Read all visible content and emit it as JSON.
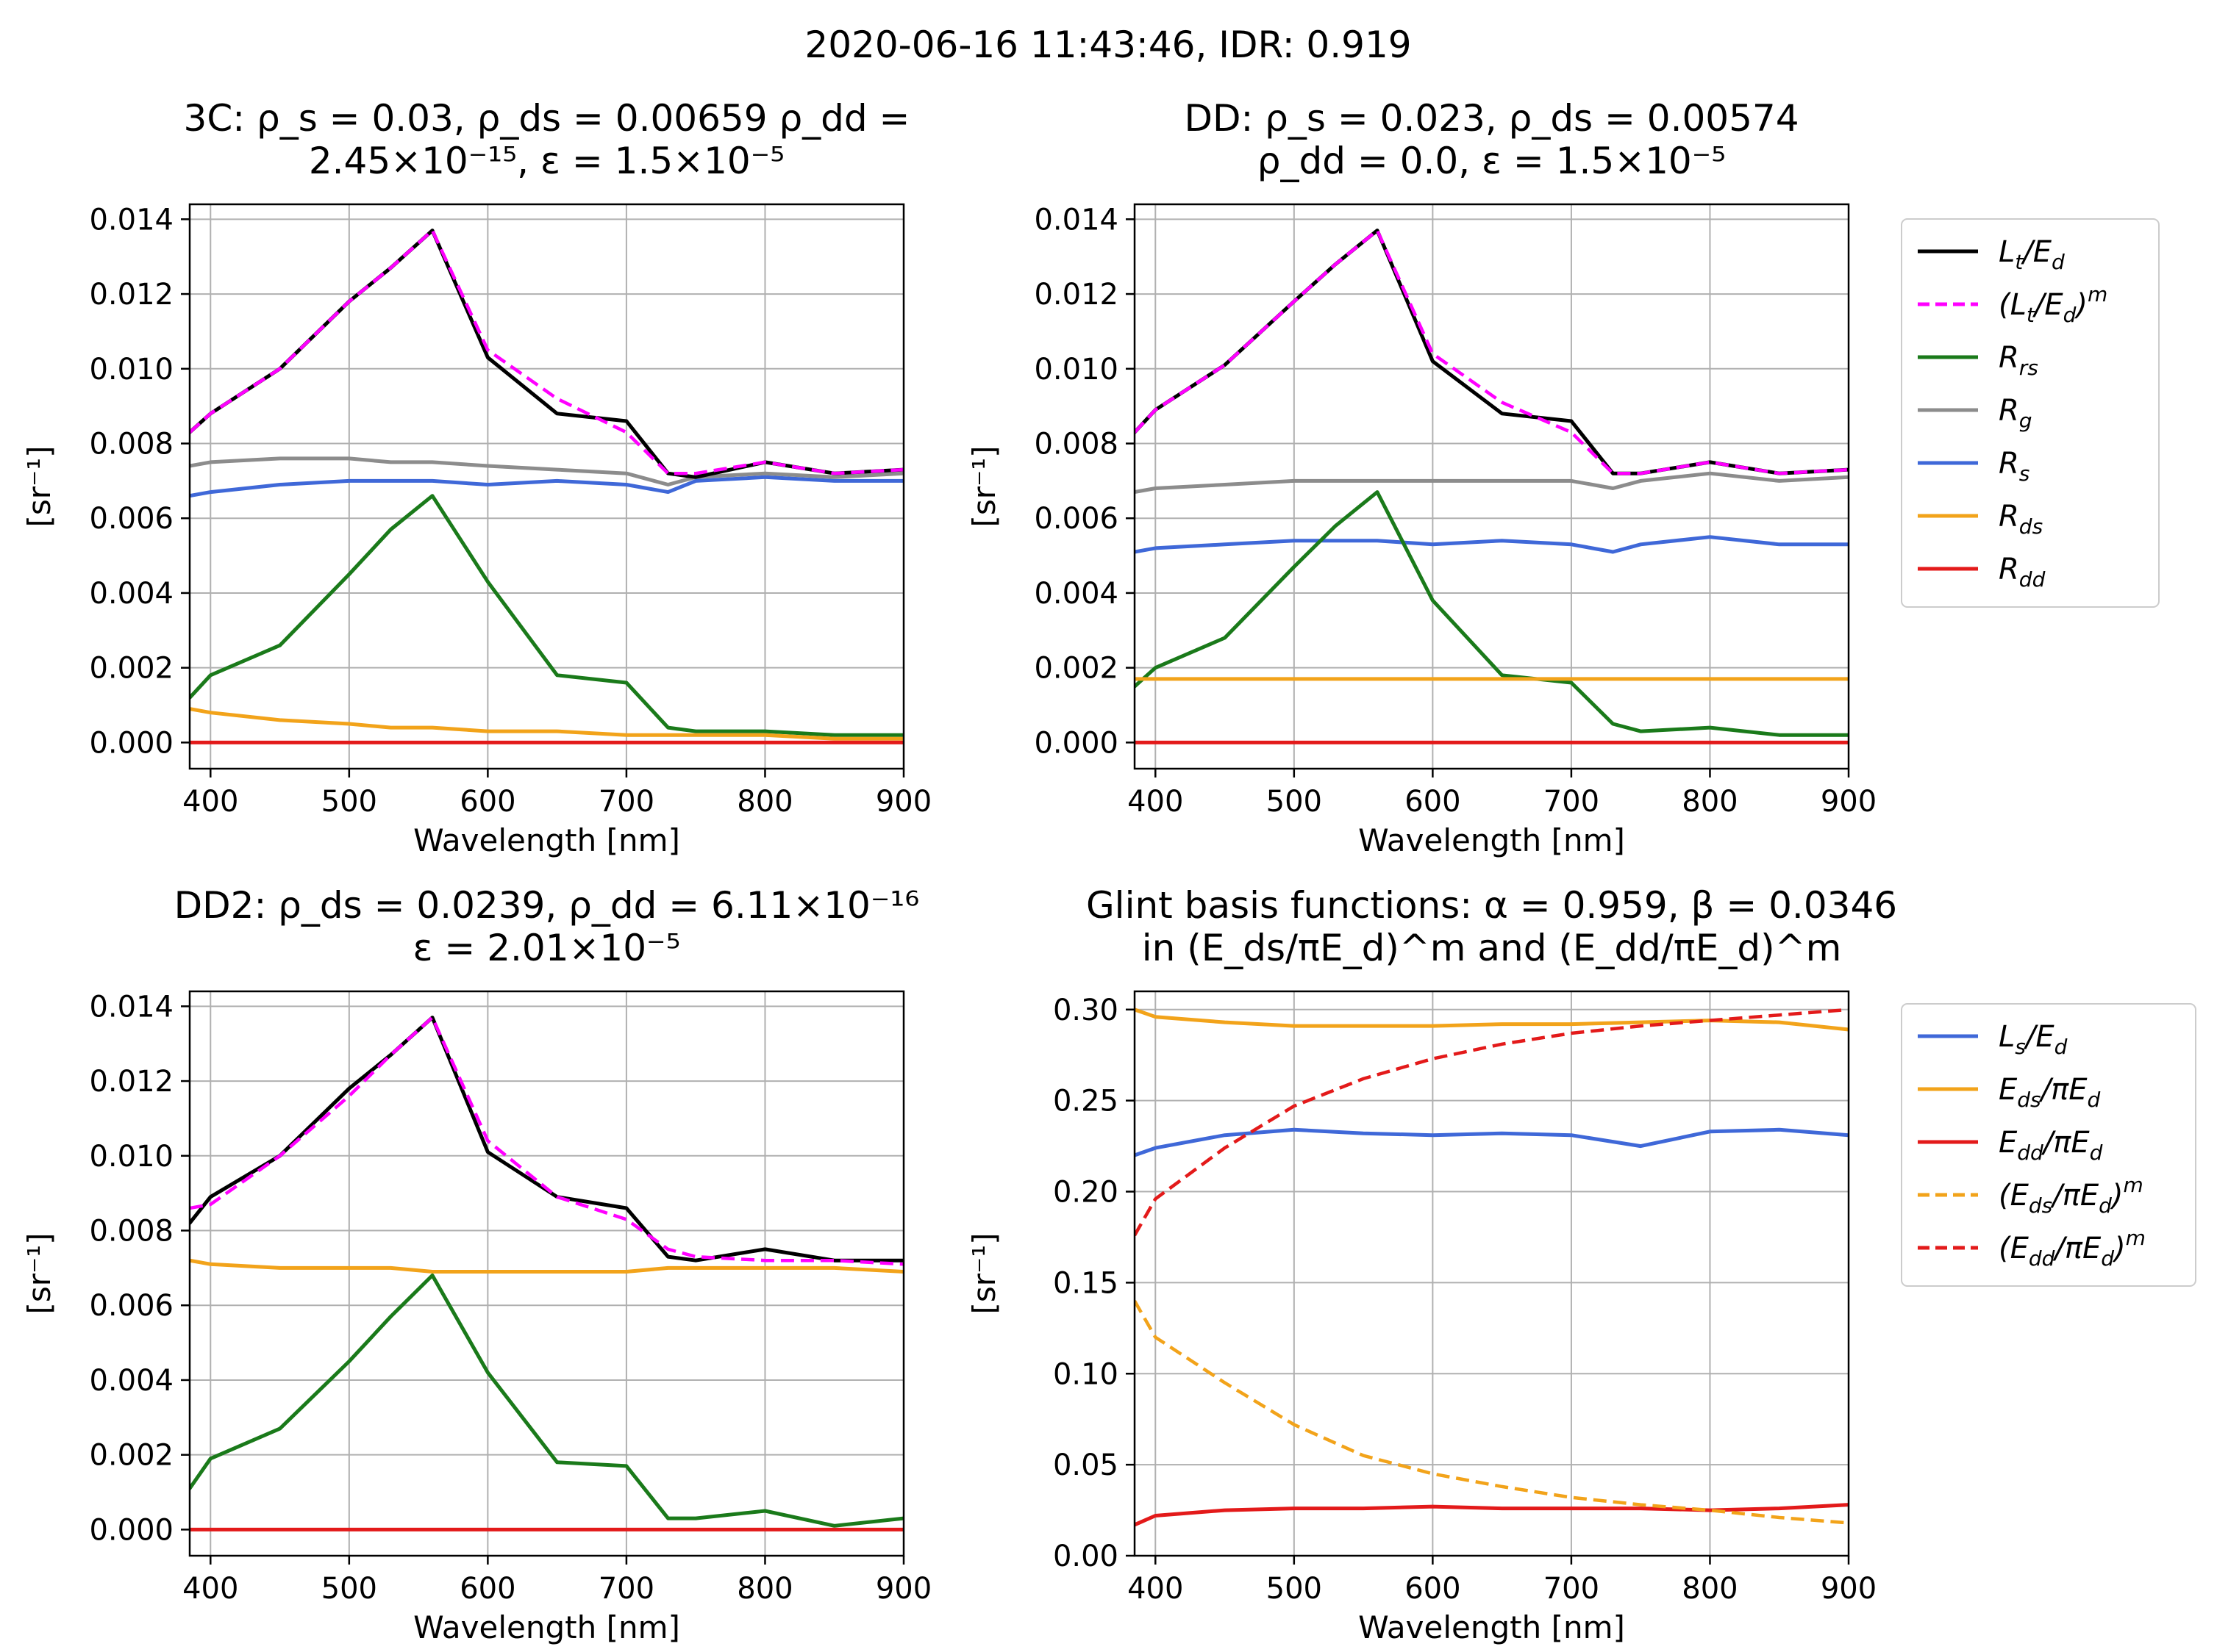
{
  "suptitle": "2020-06-16 11:43:46,  IDR: 0.919",
  "colors": {
    "lt": "#000000",
    "model": "#ff00ff",
    "rrs": "#1a7a1a",
    "rg": "#8c8c8c",
    "rs": "#3f68d8",
    "rds": "#f2a31a",
    "rdd": "#e31a1a",
    "ls": "#3f68d8",
    "eds": "#f2a31a",
    "edd": "#e31a1a"
  },
  "chart_data": [
    {
      "id": "p3c",
      "type": "line",
      "title_lines": [
        "3C: ρ_s = 0.03, ρ_ds = 0.00659 ρ_dd =",
        "2.45×10⁻¹⁵, ε = 1.5×10⁻⁵"
      ],
      "xlabel": "Wavelength [nm]",
      "ylabel": "[sr⁻¹]",
      "xlim": [
        385,
        900
      ],
      "ylim": [
        -0.0007,
        0.0144
      ],
      "xticks": [
        400,
        500,
        600,
        700,
        800,
        900
      ],
      "yticks": [
        0.0,
        0.002,
        0.004,
        0.006,
        0.008,
        0.01,
        0.012,
        0.014
      ],
      "yticklabels": [
        "0.000",
        "0.002",
        "0.004",
        "0.006",
        "0.008",
        "0.010",
        "0.012",
        "0.014"
      ],
      "x": [
        385,
        400,
        450,
        500,
        530,
        560,
        600,
        650,
        700,
        730,
        750,
        800,
        850,
        900
      ],
      "series": [
        {
          "name": "R_s",
          "color": "rs",
          "style": "solid",
          "values": [
            0.0066,
            0.0067,
            0.0069,
            0.007,
            0.007,
            0.007,
            0.0069,
            0.007,
            0.0069,
            0.0067,
            0.007,
            0.0071,
            0.007,
            0.007
          ]
        },
        {
          "name": "R_g",
          "color": "rg",
          "style": "solid",
          "values": [
            0.0074,
            0.0075,
            0.0076,
            0.0076,
            0.0075,
            0.0075,
            0.0074,
            0.0073,
            0.0072,
            0.0069,
            0.0071,
            0.0072,
            0.0071,
            0.0072
          ]
        },
        {
          "name": "R_rs",
          "color": "rrs",
          "style": "solid",
          "values": [
            0.0012,
            0.0018,
            0.0026,
            0.0045,
            0.0057,
            0.0066,
            0.0043,
            0.0018,
            0.0016,
            0.0004,
            0.0003,
            0.0003,
            0.0002,
            0.0002
          ]
        },
        {
          "name": "R_ds",
          "color": "rds",
          "style": "solid",
          "values": [
            0.0009,
            0.0008,
            0.0006,
            0.0005,
            0.0004,
            0.0004,
            0.0003,
            0.0003,
            0.0002,
            0.0002,
            0.0002,
            0.0002,
            0.0001,
            0.0001
          ]
        },
        {
          "name": "R_dd",
          "color": "rdd",
          "style": "solid",
          "values": [
            0.0,
            0.0,
            0.0,
            0.0,
            0.0,
            0.0,
            0.0,
            0.0,
            0.0,
            0.0,
            0.0,
            0.0,
            0.0,
            0.0
          ]
        },
        {
          "name": "L_t/E_d",
          "color": "lt",
          "style": "solid",
          "values": [
            0.0083,
            0.0088,
            0.01,
            0.0118,
            0.0127,
            0.0137,
            0.0103,
            0.0088,
            0.0086,
            0.0072,
            0.0071,
            0.0075,
            0.0072,
            0.0073
          ]
        },
        {
          "name": "(L_t/E_d)^m",
          "color": "model",
          "style": "dashed",
          "values": [
            0.0083,
            0.0088,
            0.01,
            0.0118,
            0.0127,
            0.0137,
            0.0105,
            0.0092,
            0.0083,
            0.0072,
            0.0072,
            0.0075,
            0.0072,
            0.0073
          ]
        }
      ]
    },
    {
      "id": "pdd",
      "type": "line",
      "title_lines": [
        "DD: ρ_s = 0.023, ρ_ds = 0.00574",
        "ρ_dd = 0.0, ε = 1.5×10⁻⁵"
      ],
      "xlabel": "Wavelength [nm]",
      "ylabel": "[sr⁻¹]",
      "xlim": [
        385,
        900
      ],
      "ylim": [
        -0.0007,
        0.0144
      ],
      "xticks": [
        400,
        500,
        600,
        700,
        800,
        900
      ],
      "yticks": [
        0.0,
        0.002,
        0.004,
        0.006,
        0.008,
        0.01,
        0.012,
        0.014
      ],
      "yticklabels": [
        "0.000",
        "0.002",
        "0.004",
        "0.006",
        "0.008",
        "0.010",
        "0.012",
        "0.014"
      ],
      "x": [
        385,
        400,
        450,
        500,
        530,
        560,
        600,
        650,
        700,
        730,
        750,
        800,
        850,
        900
      ],
      "series": [
        {
          "name": "R_s",
          "color": "rs",
          "style": "solid",
          "values": [
            0.0051,
            0.0052,
            0.0053,
            0.0054,
            0.0054,
            0.0054,
            0.0053,
            0.0054,
            0.0053,
            0.0051,
            0.0053,
            0.0055,
            0.0053,
            0.0053
          ]
        },
        {
          "name": "R_g",
          "color": "rg",
          "style": "solid",
          "values": [
            0.0067,
            0.0068,
            0.0069,
            0.007,
            0.007,
            0.007,
            0.007,
            0.007,
            0.007,
            0.0068,
            0.007,
            0.0072,
            0.007,
            0.0071
          ]
        },
        {
          "name": "R_rs",
          "color": "rrs",
          "style": "solid",
          "values": [
            0.0015,
            0.002,
            0.0028,
            0.0047,
            0.0058,
            0.0067,
            0.0038,
            0.0018,
            0.0016,
            0.0005,
            0.0003,
            0.0004,
            0.0002,
            0.0002
          ]
        },
        {
          "name": "R_ds",
          "color": "rds",
          "style": "solid",
          "values": [
            0.0017,
            0.0017,
            0.0017,
            0.0017,
            0.0017,
            0.0017,
            0.0017,
            0.0017,
            0.0017,
            0.0017,
            0.0017,
            0.0017,
            0.0017,
            0.0017
          ]
        },
        {
          "name": "R_dd",
          "color": "rdd",
          "style": "solid",
          "values": [
            0.0,
            0.0,
            0.0,
            0.0,
            0.0,
            0.0,
            0.0,
            0.0,
            0.0,
            0.0,
            0.0,
            0.0,
            0.0,
            0.0
          ]
        },
        {
          "name": "L_t/E_d",
          "color": "lt",
          "style": "solid",
          "values": [
            0.0083,
            0.0089,
            0.0101,
            0.0118,
            0.0128,
            0.0137,
            0.0102,
            0.0088,
            0.0086,
            0.0072,
            0.0072,
            0.0075,
            0.0072,
            0.0073
          ]
        },
        {
          "name": "(L_t/E_d)^m",
          "color": "model",
          "style": "dashed",
          "values": [
            0.0083,
            0.0089,
            0.0101,
            0.0118,
            0.0128,
            0.0137,
            0.0104,
            0.0091,
            0.0083,
            0.0072,
            0.0072,
            0.0075,
            0.0072,
            0.0073
          ]
        }
      ]
    },
    {
      "id": "pdd2",
      "type": "line",
      "title_lines": [
        "DD2: ρ_ds = 0.0239, ρ_dd = 6.11×10⁻¹⁶",
        "ε = 2.01×10⁻⁵"
      ],
      "xlabel": "Wavelength [nm]",
      "ylabel": "[sr⁻¹]",
      "xlim": [
        385,
        900
      ],
      "ylim": [
        -0.0007,
        0.0144
      ],
      "xticks": [
        400,
        500,
        600,
        700,
        800,
        900
      ],
      "yticks": [
        0.0,
        0.002,
        0.004,
        0.006,
        0.008,
        0.01,
        0.012,
        0.014
      ],
      "yticklabels": [
        "0.000",
        "0.002",
        "0.004",
        "0.006",
        "0.008",
        "0.010",
        "0.012",
        "0.014"
      ],
      "x": [
        385,
        400,
        450,
        500,
        530,
        560,
        600,
        650,
        700,
        730,
        750,
        800,
        850,
        900
      ],
      "series": [
        {
          "name": "R_ds",
          "color": "rds",
          "style": "solid",
          "values": [
            0.0072,
            0.0071,
            0.007,
            0.007,
            0.007,
            0.0069,
            0.0069,
            0.0069,
            0.0069,
            0.007,
            0.007,
            0.007,
            0.007,
            0.0069
          ]
        },
        {
          "name": "R_rs",
          "color": "rrs",
          "style": "solid",
          "values": [
            0.0011,
            0.0019,
            0.0027,
            0.0045,
            0.0057,
            0.0068,
            0.0042,
            0.0018,
            0.0017,
            0.0003,
            0.0003,
            0.0005,
            0.0001,
            0.0003
          ]
        },
        {
          "name": "R_dd",
          "color": "rdd",
          "style": "solid",
          "values": [
            0.0,
            0.0,
            0.0,
            0.0,
            0.0,
            0.0,
            0.0,
            0.0,
            0.0,
            0.0,
            0.0,
            0.0,
            0.0,
            0.0
          ]
        },
        {
          "name": "L_t/E_d",
          "color": "lt",
          "style": "solid",
          "values": [
            0.0082,
            0.0089,
            0.01,
            0.0118,
            0.0127,
            0.0137,
            0.0101,
            0.0089,
            0.0086,
            0.0073,
            0.0072,
            0.0075,
            0.0072,
            0.0072
          ]
        },
        {
          "name": "(L_t/E_d)^m",
          "color": "model",
          "style": "dashed",
          "values": [
            0.0086,
            0.0087,
            0.01,
            0.0116,
            0.0127,
            0.0137,
            0.0104,
            0.0089,
            0.0083,
            0.0075,
            0.0073,
            0.0072,
            0.0072,
            0.0071
          ]
        }
      ]
    },
    {
      "id": "pglint",
      "type": "line",
      "title_lines": [
        "Glint basis functions: α = 0.959, β = 0.0346",
        "in (E_ds/πE_d)^m and (E_dd/πE_d)^m"
      ],
      "xlabel": "Wavelength [nm]",
      "ylabel": "[sr⁻¹]",
      "xlim": [
        385,
        900
      ],
      "ylim": [
        0.0,
        0.31
      ],
      "xticks": [
        400,
        500,
        600,
        700,
        800,
        900
      ],
      "yticks": [
        0.0,
        0.05,
        0.1,
        0.15,
        0.2,
        0.25,
        0.3
      ],
      "yticklabels": [
        "0.00",
        "0.05",
        "0.10",
        "0.15",
        "0.20",
        "0.25",
        "0.30"
      ],
      "x": [
        385,
        400,
        450,
        500,
        550,
        600,
        650,
        700,
        750,
        800,
        850,
        900
      ],
      "series": [
        {
          "name": "L_s/E_d",
          "color": "ls",
          "style": "solid",
          "values": [
            0.22,
            0.224,
            0.231,
            0.234,
            0.232,
            0.231,
            0.232,
            0.231,
            0.225,
            0.233,
            0.234,
            0.231
          ]
        },
        {
          "name": "E_ds/πE_d",
          "color": "eds",
          "style": "solid",
          "values": [
            0.3,
            0.296,
            0.293,
            0.291,
            0.291,
            0.291,
            0.292,
            0.292,
            0.293,
            0.294,
            0.293,
            0.289
          ]
        },
        {
          "name": "E_dd/πE_d",
          "color": "edd",
          "style": "solid",
          "values": [
            0.017,
            0.022,
            0.025,
            0.026,
            0.026,
            0.027,
            0.026,
            0.026,
            0.026,
            0.025,
            0.026,
            0.028
          ]
        },
        {
          "name": "(E_ds/πE_d)^m",
          "color": "eds",
          "style": "dashed",
          "values": [
            0.14,
            0.12,
            0.095,
            0.072,
            0.055,
            0.045,
            0.038,
            0.032,
            0.028,
            0.025,
            0.021,
            0.018
          ]
        },
        {
          "name": "(E_dd/πE_d)^m",
          "color": "edd",
          "style": "dashed",
          "values": [
            0.176,
            0.196,
            0.224,
            0.247,
            0.262,
            0.273,
            0.281,
            0.287,
            0.291,
            0.294,
            0.297,
            0.3
          ]
        }
      ]
    }
  ],
  "legends": [
    {
      "id": "legend-top",
      "items": [
        {
          "label": "L_t/E_d",
          "color": "lt",
          "style": "solid"
        },
        {
          "label": "(L_t/E_d)^m",
          "color": "model",
          "style": "dashed"
        },
        {
          "label": "R_rs",
          "color": "rrs",
          "style": "solid"
        },
        {
          "label": "R_g",
          "color": "rg",
          "style": "solid"
        },
        {
          "label": "R_s",
          "color": "rs",
          "style": "solid"
        },
        {
          "label": "R_ds",
          "color": "rds",
          "style": "solid"
        },
        {
          "label": "R_dd",
          "color": "rdd",
          "style": "solid"
        }
      ]
    },
    {
      "id": "legend-bottom",
      "items": [
        {
          "label": "L_s/E_d",
          "color": "ls",
          "style": "solid"
        },
        {
          "label": "E_ds/πE_d",
          "color": "eds",
          "style": "solid"
        },
        {
          "label": "E_dd/πE_d",
          "color": "edd",
          "style": "solid"
        },
        {
          "label": "(E_ds/πE_d)^m",
          "color": "eds",
          "style": "dashed"
        },
        {
          "label": "(E_dd/πE_d)^m",
          "color": "edd",
          "style": "dashed"
        }
      ]
    }
  ]
}
